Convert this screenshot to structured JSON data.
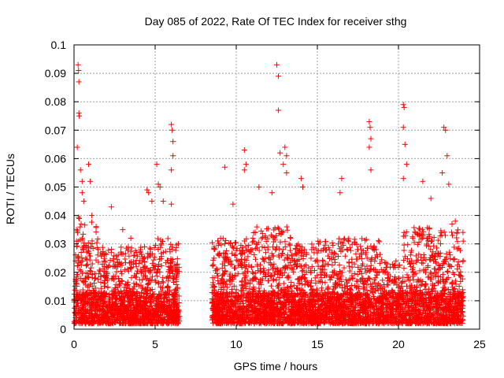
{
  "chart_data": {
    "type": "scatter",
    "title": "Day 085 of 2022, Rate Of TEC Index for receiver sthg",
    "xlabel": "GPS time / hours",
    "ylabel": "ROTI / TECUs",
    "xlim": [
      0,
      25
    ],
    "ylim": [
      0,
      0.1
    ],
    "x_ticks": [
      0,
      5,
      10,
      15,
      20,
      25
    ],
    "x_tick_labels": [
      "0",
      "5",
      "10",
      "15",
      "20",
      "25"
    ],
    "y_ticks": [
      0,
      0.01,
      0.02,
      0.03,
      0.04,
      0.05,
      0.06,
      0.07,
      0.08,
      0.09,
      0.1
    ],
    "y_tick_labels": [
      "0",
      "0.01",
      "0.02",
      "0.03",
      "0.04",
      "0.05",
      "0.06",
      "0.07",
      "0.08",
      "0.09",
      "0.1"
    ],
    "grid": true,
    "marker": "plus",
    "color": "#ff0000",
    "data_coverage_hours": [
      [
        0,
        6.5
      ],
      [
        8.5,
        24
      ]
    ],
    "series": [
      {
        "values": [
          [
            0.1,
            0.024
          ],
          [
            0.15,
            0.035
          ],
          [
            0.2,
            0.064
          ],
          [
            0.25,
            0.093
          ],
          [
            0.28,
            0.091
          ],
          [
            0.3,
            0.087
          ],
          [
            0.3,
            0.076
          ],
          [
            0.32,
            0.075
          ],
          [
            0.4,
            0.056
          ],
          [
            0.5,
            0.048
          ],
          [
            0.5,
            0.052
          ],
          [
            0.6,
            0.045
          ],
          [
            0.9,
            0.058
          ],
          [
            1.0,
            0.052
          ],
          [
            1.1,
            0.04
          ],
          [
            2.3,
            0.043
          ],
          [
            3.0,
            0.035
          ],
          [
            3.5,
            0.032
          ],
          [
            4.5,
            0.049
          ],
          [
            4.6,
            0.048
          ],
          [
            4.8,
            0.045
          ],
          [
            5.1,
            0.058
          ],
          [
            5.2,
            0.051
          ],
          [
            5.3,
            0.05
          ],
          [
            5.5,
            0.045
          ],
          [
            6.0,
            0.072
          ],
          [
            6.05,
            0.07
          ],
          [
            6.1,
            0.066
          ],
          [
            6.1,
            0.061
          ],
          [
            6.0,
            0.056
          ],
          [
            6.0,
            0.044
          ],
          [
            9.3,
            0.057
          ],
          [
            9.8,
            0.044
          ],
          [
            10.5,
            0.063
          ],
          [
            10.6,
            0.058
          ],
          [
            10.5,
            0.056
          ],
          [
            11.4,
            0.05
          ],
          [
            12.2,
            0.048
          ],
          [
            12.5,
            0.093
          ],
          [
            12.6,
            0.089
          ],
          [
            12.6,
            0.077
          ],
          [
            12.7,
            0.062
          ],
          [
            12.9,
            0.058
          ],
          [
            13.0,
            0.064
          ],
          [
            13.1,
            0.061
          ],
          [
            13.1,
            0.055
          ],
          [
            14.0,
            0.053
          ],
          [
            14.1,
            0.05
          ],
          [
            16.5,
            0.053
          ],
          [
            16.4,
            0.048
          ],
          [
            18.2,
            0.073
          ],
          [
            18.25,
            0.071
          ],
          [
            18.3,
            0.067
          ],
          [
            18.2,
            0.064
          ],
          [
            18.3,
            0.056
          ],
          [
            20.3,
            0.079
          ],
          [
            20.35,
            0.078
          ],
          [
            20.3,
            0.071
          ],
          [
            20.4,
            0.065
          ],
          [
            20.5,
            0.058
          ],
          [
            20.3,
            0.053
          ],
          [
            21.5,
            0.052
          ],
          [
            22.0,
            0.046
          ],
          [
            22.7,
            0.055
          ],
          [
            22.8,
            0.071
          ],
          [
            22.9,
            0.07
          ],
          [
            23.0,
            0.061
          ],
          [
            23.1,
            0.051
          ],
          [
            23.5,
            0.038
          ],
          [
            23.3,
            0.037
          ]
        ]
      }
    ]
  }
}
